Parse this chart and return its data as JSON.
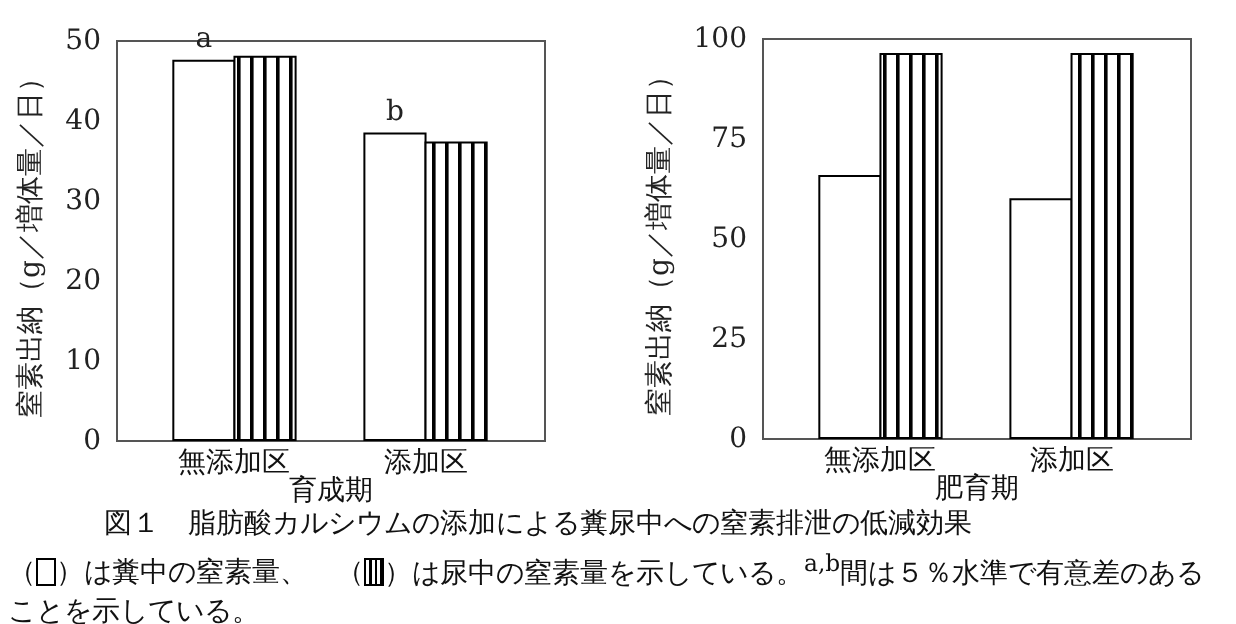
{
  "chart_data": [
    {
      "type": "bar",
      "title": "図１　脂肪酸カルシウムの添加による糞尿中への窒素排泄の低減効果",
      "xlabel": "育成期",
      "ylabel": "窒素出納（g／増体量／日）",
      "categories": [
        "無添加区",
        "添加区"
      ],
      "series": [
        {
          "color": "#ffffff",
          "values": [
            47.4,
            38.3
          ]
        },
        {
          "color": "#000000",
          "values": [
            47.9,
            37.2
          ]
        }
      ],
      "ylim": [
        0,
        50
      ],
      "yticks": [
        0,
        10,
        20,
        30,
        40,
        50
      ],
      "grid": false,
      "annotations": [
        {
          "text": "a",
          "x": "無添加区",
          "y": 47.4
        },
        {
          "text": "b",
          "x": "添加区",
          "y": 38.3
        },
        "（",
        "）は糞中の窒素量、　（",
        "）は尿中の窒素量を示している。$^{a,b}$間は５％水準で有意差のあることを示している。"
      ]
    },
    {
      "type": "bar",
      "xlabel": "肥育期",
      "ylabel": "窒素出納（g／増体量／日）",
      "categories": [
        "無添加区",
        "添加区"
      ],
      "series": [
        {
          "color": "#ffffff",
          "values": [
            65.5,
            59.7
          ]
        },
        {
          "color": "#000000",
          "values": [
            96,
            96
          ]
        }
      ],
      "ylim": [
        0,
        100
      ],
      "yticks": [
        0,
        25,
        50,
        75,
        100
      ],
      "grid": false
    }
  ]
}
